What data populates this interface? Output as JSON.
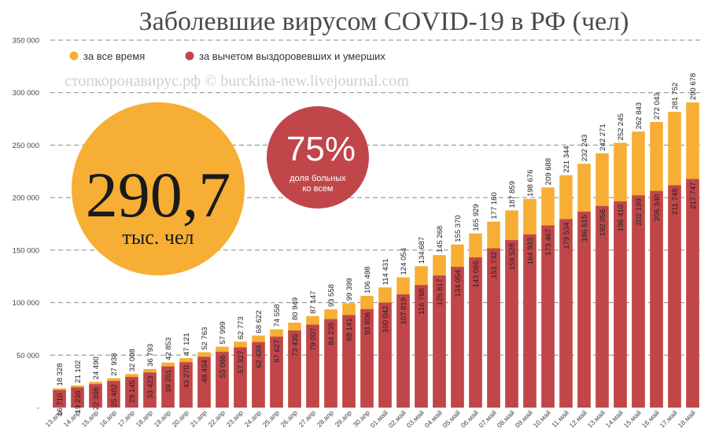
{
  "title": "Заболевшие вирусом COVID-19 в РФ (чел)",
  "watermark": "стопкоронавирус.рф © burckina-new.livejournal.com",
  "legend": {
    "total_label": "за все время",
    "active_label": "за вычетом выздоровевших и умерших"
  },
  "badge_total": {
    "value": "290,7",
    "unit": "тыс. чел"
  },
  "badge_share": {
    "value": "75%",
    "caption_line1": "доля больных",
    "caption_line2": "ко всем"
  },
  "colors": {
    "total": "#f7ae34",
    "active": "#c0464a",
    "badge_total": "#f7ae34",
    "badge_share": "#c0464a",
    "grid": "#888888"
  },
  "chart_data": {
    "type": "bar",
    "stacked": "overlay",
    "title": "Заболевшие вирусом COVID-19 в РФ (чел)",
    "ylim": [
      0,
      350000
    ],
    "yticks": [
      0,
      50000,
      100000,
      150000,
      200000,
      250000,
      300000,
      350000
    ],
    "ytick_labels": [
      "-",
      "50 000",
      "100 000",
      "150 000",
      "200 000",
      "250 000",
      "300 000",
      "350 000"
    ],
    "grid": true,
    "legend_position": "top-left",
    "categories": [
      "13.апр",
      "14.апр",
      "15.апр",
      "16.апр",
      "17.апр",
      "18.апр",
      "19.апр",
      "20.апр",
      "21.апр",
      "22.апр",
      "23.апр",
      "24.апр",
      "25.апр",
      "26.апр",
      "27.апр",
      "28.апр",
      "29.апр",
      "30.апр",
      "01.май",
      "02.май",
      "03.май",
      "04.май",
      "05.май",
      "06.май",
      "07.май",
      "08.май",
      "09.май",
      "10.май",
      "11.май",
      "12.май",
      "13.май",
      "14.май",
      "15.май",
      "16.май",
      "17.май",
      "18.май"
    ],
    "series": [
      {
        "name": "за все время",
        "values": [
          18328,
          21102,
          24490,
          27938,
          32008,
          36793,
          42853,
          47121,
          52763,
          57999,
          62773,
          68622,
          74558,
          80949,
          87147,
          93558,
          99399,
          106498,
          114431,
          124054,
          134687,
          145268,
          155370,
          165929,
          177160,
          187859,
          198676,
          209688,
          221344,
          232243,
          242271,
          252245,
          262843,
          272043,
          281752,
          290678
        ],
        "labels": [
          "18 328",
          "21 102",
          "24 490",
          "27 938",
          "32 008",
          "36 793",
          "42 853",
          "47 121",
          "52 763",
          "57 999",
          "62 773",
          "68 622",
          "74 558",
          "80 949",
          "87 147",
          "93 558",
          "99 399",
          "106 498",
          "114 431",
          "124 054",
          "134 687",
          "145 268",
          "155 370",
          "165 929",
          "177 160",
          "187 859",
          "198 676",
          "209 688",
          "221 344",
          "232 243",
          "242 271",
          "252 245",
          "262 843",
          "272 043",
          "281 752",
          "290 678"
        ]
      },
      {
        "name": "за вычетом выздоровевших и умерших",
        "values": [
          16710,
          19238,
          22306,
          25402,
          29145,
          33423,
          39201,
          43270,
          48434,
          53066,
          57327,
          62439,
          67627,
          73435,
          79007,
          84235,
          88141,
          93806,
          100042,
          107819,
          116768,
          125817,
          134054,
          143065,
          151732,
          159528,
          164933,
          173467,
          179534,
          186615,
          192056,
          196410,
          202199,
          206340,
          211748,
          217747
        ],
        "labels": [
          "16 710",
          "19 238",
          "22 306",
          "25 402",
          "29 145",
          "33 423",
          "39 201",
          "43 270",
          "48 434",
          "53 066",
          "57 327",
          "62 439",
          "67 627",
          "73 435",
          "79 007",
          "84 235",
          "88 141",
          "93 806",
          "100 042",
          "107 819",
          "116 768",
          "125 817",
          "134 054",
          "143 065",
          "151 732",
          "159 528",
          "164 933",
          "173 467",
          "179 534",
          "186 615",
          "192 056",
          "196 410",
          "202 199",
          "206 340",
          "211 748",
          "217 747"
        ]
      }
    ]
  }
}
